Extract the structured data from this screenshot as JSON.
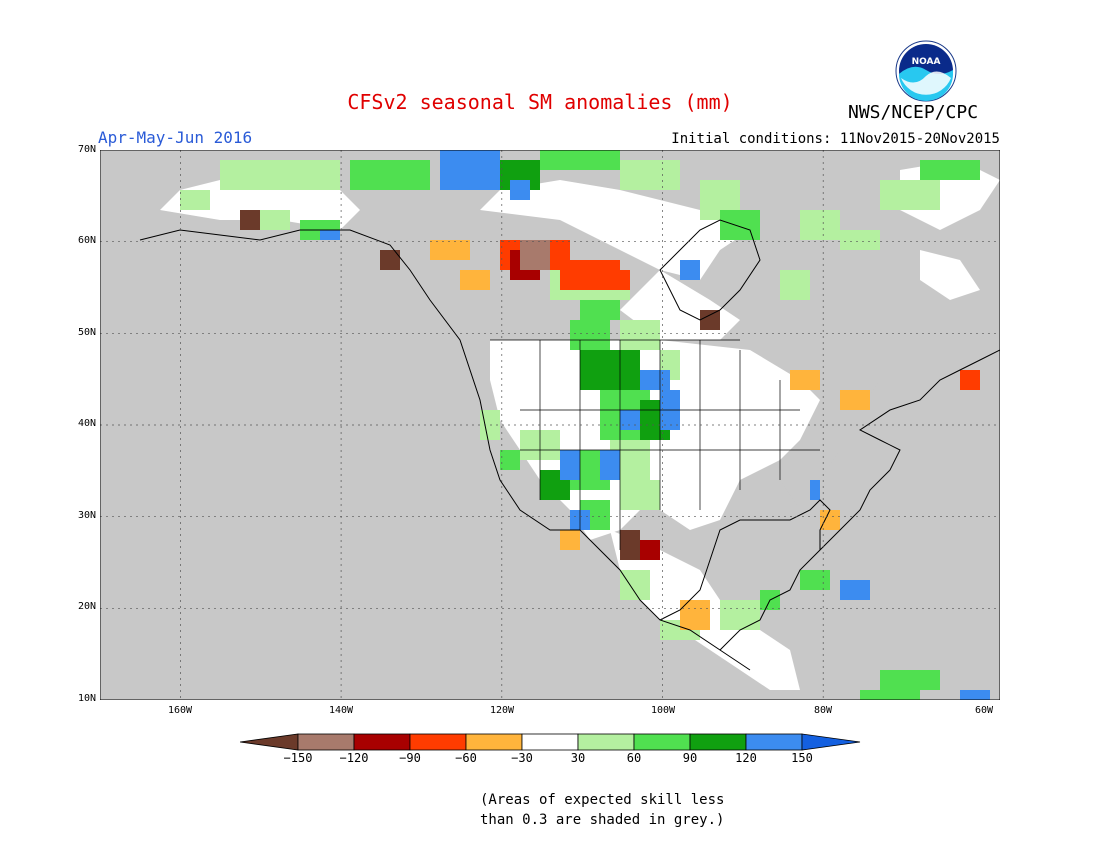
{
  "title": "CFSv2 seasonal SM anomalies (mm)",
  "season": "Apr-May-Jun 2016",
  "initial_conditions": "Initial conditions: 11Nov2015-20Nov2015",
  "agency": "NWS/NCEP/CPC",
  "logo_text": "NOAA",
  "map": {
    "lat_labels": [
      "70N",
      "60N",
      "50N",
      "40N",
      "30N",
      "20N",
      "10N"
    ],
    "lon_labels": [
      "160W",
      "140W",
      "120W",
      "100W",
      "80W",
      "60W"
    ],
    "lat_range": [
      10,
      70
    ],
    "lon_range": [
      -172,
      -60
    ],
    "land_color": "#ffffff",
    "ocean_color": "#c8c8c8",
    "grey_color": "#c8c8c8"
  },
  "colorbar": {
    "labels": [
      "−150",
      "−120",
      "−90",
      "−60",
      "−30",
      "30",
      "60",
      "90",
      "120",
      "150"
    ],
    "colors": [
      "#6b3a2a",
      "#a87a6c",
      "#a80000",
      "#ff3c00",
      "#ffb43c",
      "#ffffff",
      "#b4f0a0",
      "#50e050",
      "#10a010",
      "#3c8cf0",
      "#1460e0"
    ]
  },
  "note_line1": "(Areas of expected skill less",
  "note_line2": "than 0.3 are shaded in grey.)"
}
